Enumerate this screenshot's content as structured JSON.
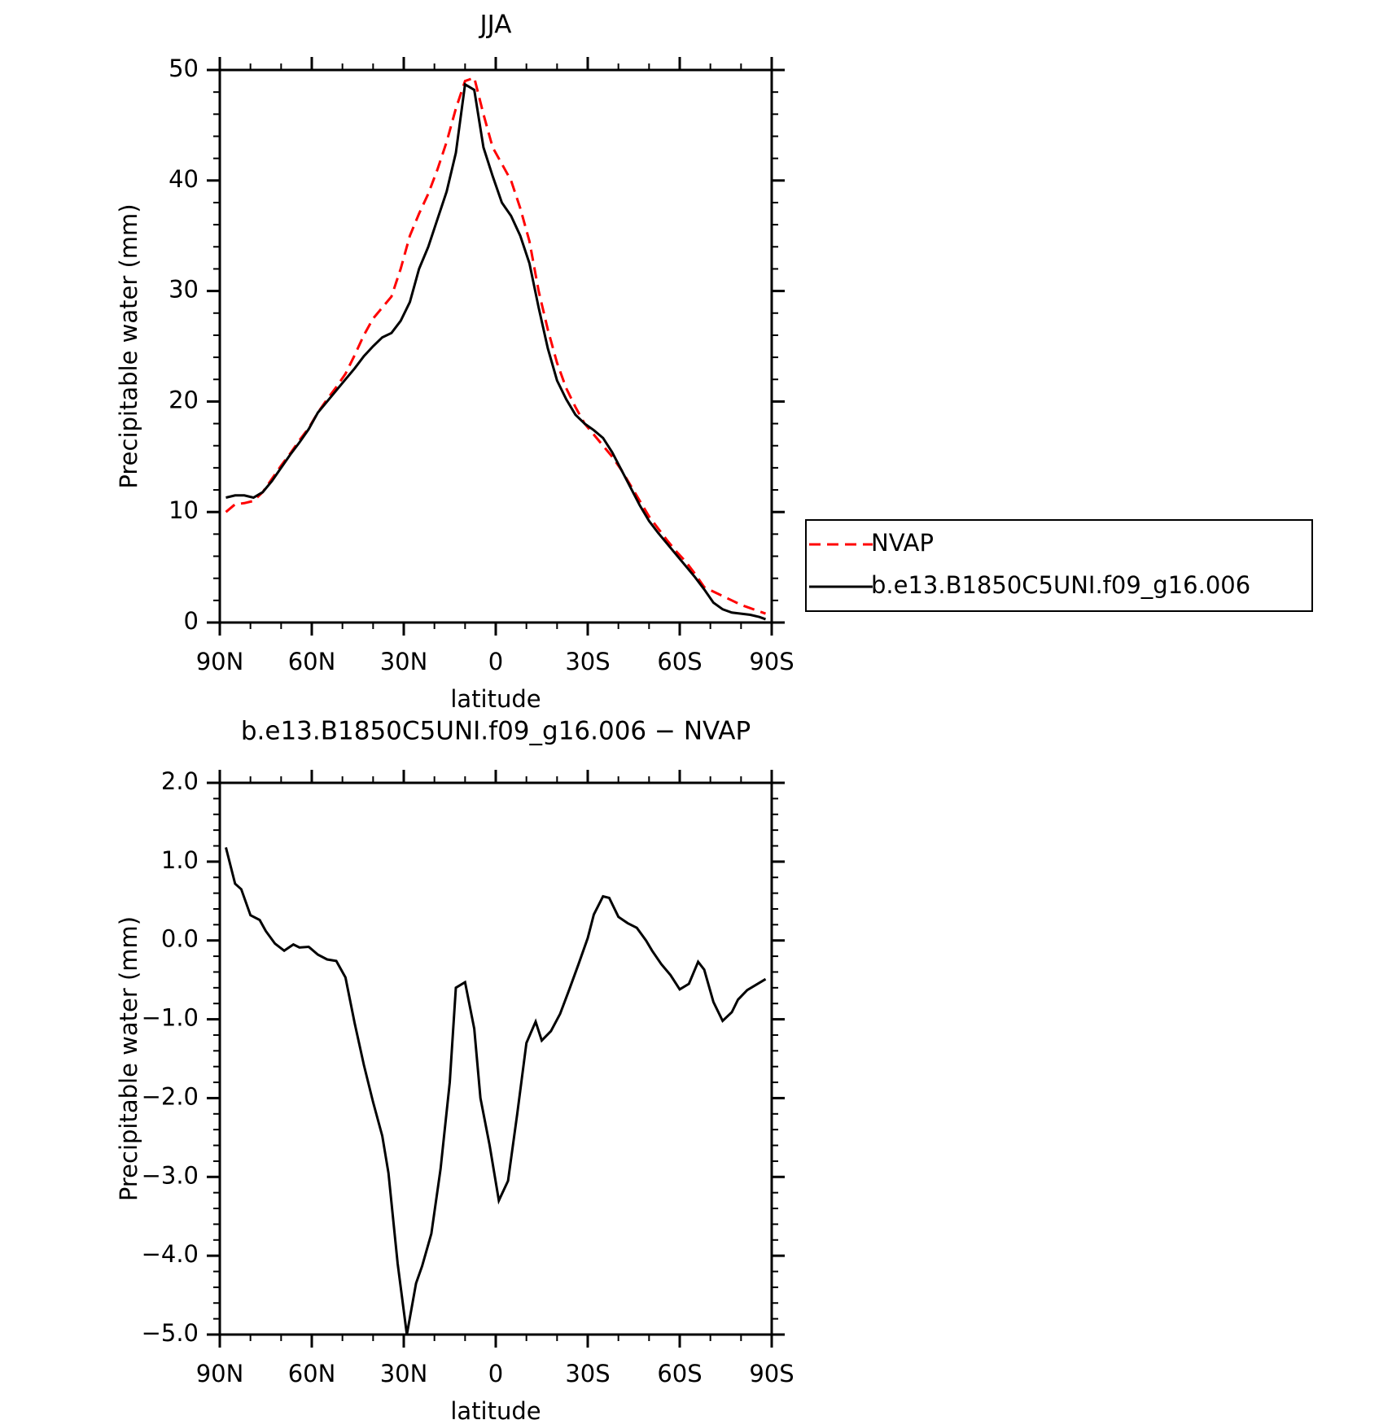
{
  "chart_data": [
    {
      "type": "line",
      "title": "JJA",
      "xlabel": "latitude",
      "ylabel": "Precipitable water (mm)",
      "x": [
        88,
        85,
        82,
        79,
        76,
        73,
        70,
        67,
        64,
        61,
        58,
        55,
        52,
        49,
        46,
        43,
        40,
        37,
        34,
        31,
        28,
        25,
        22,
        19,
        16,
        13,
        10,
        7,
        4,
        1,
        -2,
        -5,
        -8,
        -11,
        -14,
        -17,
        -20,
        -23,
        -26,
        -29,
        -32,
        -35,
        -38,
        -41,
        -44,
        -47,
        -50,
        -53,
        -56,
        -59,
        -62,
        -65,
        -68,
        -71,
        -74,
        -77,
        -80,
        -83,
        -86,
        -88
      ],
      "series": [
        {
          "name": "NVAP",
          "color": "#ff0000",
          "linestyle": "dashed",
          "values": [
            10.0,
            10.7,
            10.8,
            11.0,
            11.8,
            13.0,
            14.2,
            15.3,
            16.5,
            17.6,
            19.0,
            20.2,
            21.3,
            22.5,
            24.2,
            26.0,
            27.5,
            28.5,
            29.5,
            32.0,
            35.0,
            37.0,
            38.8,
            41.0,
            43.5,
            46.5,
            49.0,
            49.3,
            46.0,
            43.0,
            41.5,
            40.0,
            37.5,
            34.5,
            30.0,
            26.5,
            23.5,
            21.2,
            19.5,
            18.0,
            17.0,
            16.0,
            15.0,
            13.8,
            12.4,
            11.0,
            9.6,
            8.5,
            7.4,
            6.4,
            5.5,
            4.4,
            3.2,
            2.8,
            2.4,
            2.0,
            1.6,
            1.3,
            1.0,
            0.8
          ]
        },
        {
          "name": "b.e13.B1850C5UNI.f09_g16.006",
          "color": "#000000",
          "linestyle": "solid",
          "values": [
            11.3,
            11.5,
            11.5,
            11.3,
            11.8,
            12.8,
            14.0,
            15.2,
            16.3,
            17.5,
            19.0,
            20.0,
            21.0,
            22.0,
            23.0,
            24.1,
            25.0,
            25.8,
            26.2,
            27.3,
            29.0,
            32.0,
            34.0,
            36.5,
            39.0,
            42.5,
            48.7,
            48.2,
            43.0,
            40.4,
            38.0,
            36.8,
            35.0,
            32.5,
            28.5,
            24.8,
            21.9,
            20.2,
            18.8,
            18.0,
            17.4,
            16.7,
            15.4,
            13.8,
            12.2,
            10.6,
            9.2,
            8.1,
            7.1,
            6.1,
            5.1,
            4.1,
            3.0,
            1.8,
            1.2,
            0.9,
            0.8,
            0.7,
            0.5,
            0.3
          ]
        }
      ],
      "xlim": [
        90,
        -90
      ],
      "xticks": [
        {
          "value": 90,
          "label": "90N"
        },
        {
          "value": 60,
          "label": "60N"
        },
        {
          "value": 30,
          "label": "30N"
        },
        0,
        {
          "value": -30,
          "label": "30S"
        },
        {
          "value": -60,
          "label": "60S"
        },
        {
          "value": -90,
          "label": "90S"
        }
      ],
      "ylim": [
        0,
        50
      ],
      "yticks": [
        0,
        10,
        20,
        30,
        40,
        50
      ],
      "legend": "right"
    },
    {
      "type": "line",
      "title": "b.e13.B1850C5UNI.f09_g16.006 − NVAP",
      "xlabel": "latitude",
      "ylabel": "Precipitable water (mm)",
      "x": [
        88,
        85,
        83,
        80,
        77,
        75,
        72,
        69,
        66,
        64,
        61,
        58,
        55,
        52,
        49,
        46,
        43,
        40,
        37,
        35,
        32,
        29,
        26,
        24,
        21,
        18,
        15,
        13,
        10,
        7,
        5,
        2,
        -1,
        -4,
        -7,
        -10,
        -13,
        -15,
        -18,
        -21,
        -24,
        -27,
        -30,
        -32,
        -35,
        -37,
        -40,
        -43,
        -46,
        -49,
        -51,
        -54,
        -57,
        -60,
        -63,
        -66,
        -68,
        -71,
        -74,
        -77,
        -79,
        -82,
        -88
      ],
      "color": "#000000",
      "values": [
        1.18,
        0.72,
        0.65,
        0.32,
        0.26,
        0.12,
        -0.04,
        -0.13,
        -0.05,
        -0.09,
        -0.08,
        -0.18,
        -0.24,
        -0.26,
        -0.47,
        -1.05,
        -1.58,
        -2.05,
        -2.48,
        -2.95,
        -4.1,
        -5.0,
        -4.35,
        -4.13,
        -3.72,
        -2.9,
        -1.8,
        -0.6,
        -0.53,
        -1.12,
        -2.0,
        -2.6,
        -3.3,
        -3.05,
        -2.2,
        -1.3,
        -1.03,
        -1.27,
        -1.15,
        -0.93,
        -0.62,
        -0.3,
        0.03,
        0.33,
        0.56,
        0.54,
        0.3,
        0.22,
        0.16,
        0.0,
        -0.13,
        -0.3,
        -0.44,
        -0.62,
        -0.55,
        -0.27,
        -0.37,
        -0.78,
        -1.02,
        -0.91,
        -0.75,
        -0.63,
        -0.49
      ],
      "xlim": [
        90,
        -90
      ],
      "xticks": [
        {
          "value": 90,
          "label": "90N"
        },
        {
          "value": 60,
          "label": "60N"
        },
        {
          "value": 30,
          "label": "30N"
        },
        0,
        {
          "value": -30,
          "label": "30S"
        },
        {
          "value": -60,
          "label": "60S"
        },
        {
          "value": -90,
          "label": "90S"
        }
      ],
      "ylim": [
        -5,
        2
      ],
      "yticks": [
        {
          "value": -5,
          "label": "−5.0"
        },
        {
          "value": -4,
          "label": "−4.0"
        },
        {
          "value": -3,
          "label": "−3.0"
        },
        {
          "value": -2,
          "label": "−2.0"
        },
        {
          "value": -1,
          "label": "−1.0"
        },
        {
          "value": 0,
          "label": "0.0"
        },
        {
          "value": 1,
          "label": "1.0"
        },
        {
          "value": 2,
          "label": "2.0"
        }
      ]
    }
  ]
}
